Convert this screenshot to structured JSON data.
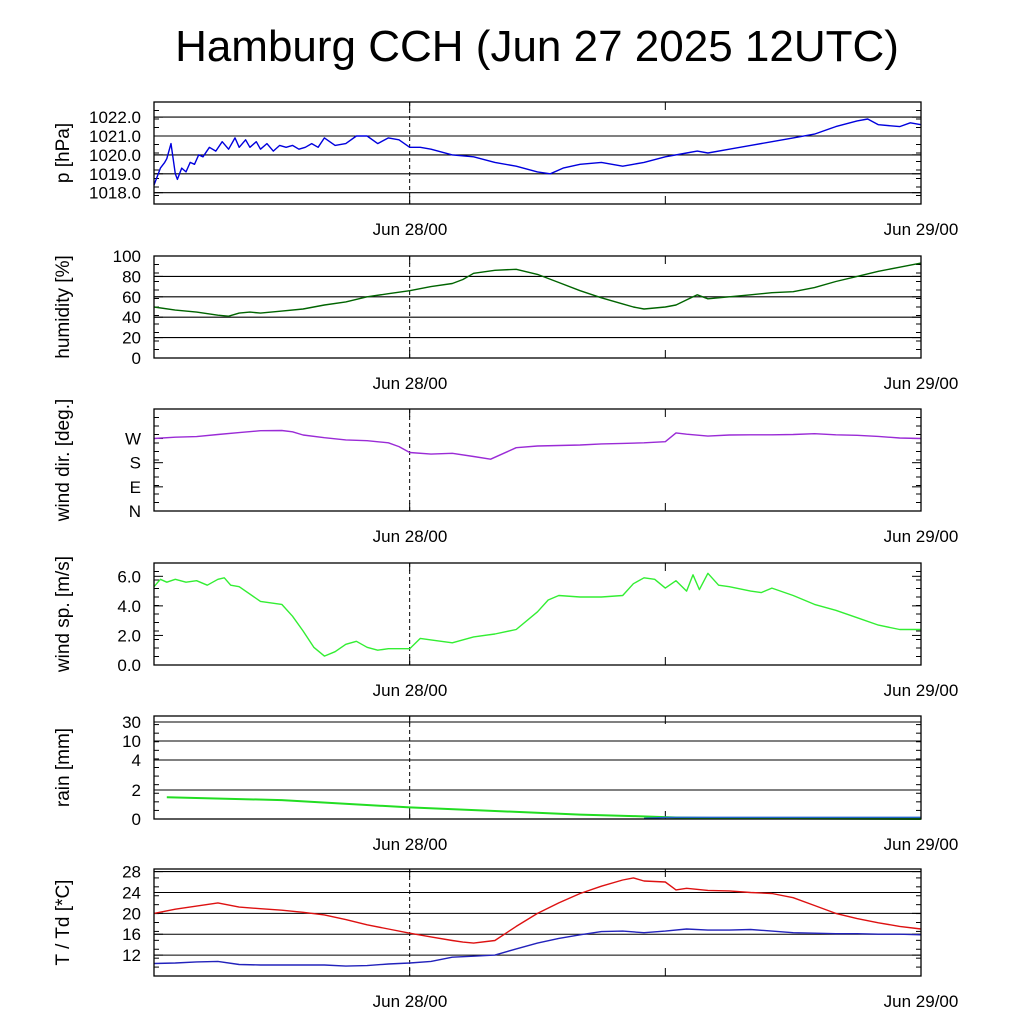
{
  "title": "Hamburg CCH (Jun 27 2025 12UTC)",
  "chart_data": [
    {
      "type": "line",
      "ylabel": "p [hPa]",
      "x_tick_labels": [
        "Jun 28/00",
        "Jun 29/00"
      ],
      "xlim_hours": [
        0,
        36
      ],
      "ylim": [
        1017.4,
        1022.8
      ],
      "yticks": [
        1018.0,
        1019.0,
        1020.0,
        1021.0,
        1022.0
      ],
      "ytick_labels": [
        "1018.0",
        "1019.0",
        "1020.0",
        "1021.0",
        "1022.0"
      ],
      "grid": true,
      "series": [
        {
          "color": "#0000dd",
          "x": [
            0,
            0.3,
            0.5,
            0.6,
            0.8,
            1.0,
            1.1,
            1.3,
            1.5,
            1.7,
            1.9,
            2.1,
            2.3,
            2.6,
            2.9,
            3.2,
            3.5,
            3.8,
            4.0,
            4.3,
            4.5,
            4.8,
            5.0,
            5.3,
            5.6,
            5.9,
            6.2,
            6.5,
            6.8,
            7.1,
            7.4,
            7.7,
            8.0,
            8.5,
            9.0,
            9.5,
            10.0,
            10.5,
            11.0,
            11.5,
            12.0,
            12.5,
            13.0,
            14.0,
            15.0,
            16.0,
            17.0,
            18.0,
            18.6,
            19.2,
            20.0,
            21.0,
            22.0,
            22.5,
            23.0,
            24.0,
            25.0,
            25.5,
            26.0,
            27.0,
            28.0,
            29.0,
            30.0,
            31.0,
            32.0,
            33.0,
            33.5,
            34.0,
            35.0,
            35.5,
            36.0
          ],
          "y": [
            1018.4,
            1019.3,
            1019.6,
            1019.8,
            1020.6,
            1019.0,
            1018.7,
            1019.3,
            1019.1,
            1019.6,
            1019.5,
            1020.0,
            1019.9,
            1020.4,
            1020.2,
            1020.7,
            1020.3,
            1020.9,
            1020.4,
            1020.8,
            1020.4,
            1020.7,
            1020.3,
            1020.6,
            1020.2,
            1020.5,
            1020.4,
            1020.5,
            1020.3,
            1020.4,
            1020.6,
            1020.4,
            1020.9,
            1020.5,
            1020.6,
            1021.0,
            1021.0,
            1020.6,
            1020.9,
            1020.8,
            1020.4,
            1020.4,
            1020.3,
            1020.0,
            1019.9,
            1019.6,
            1019.4,
            1019.1,
            1019.0,
            1019.3,
            1019.5,
            1019.6,
            1019.4,
            1019.5,
            1019.6,
            1019.9,
            1020.1,
            1020.2,
            1020.1,
            1020.3,
            1020.5,
            1020.7,
            1020.9,
            1021.1,
            1021.5,
            1021.8,
            1021.9,
            1021.6,
            1021.5,
            1021.7,
            1021.6
          ]
        }
      ]
    },
    {
      "type": "line",
      "ylabel": "humidity [%]",
      "x_tick_labels": [
        "Jun 28/00",
        "Jun 29/00"
      ],
      "xlim_hours": [
        0,
        36
      ],
      "ylim": [
        0,
        100
      ],
      "yticks": [
        0,
        20,
        40,
        60,
        80,
        100
      ],
      "ytick_labels": [
        "0",
        "20",
        "40",
        "60",
        "80",
        "100"
      ],
      "grid": true,
      "series": [
        {
          "color": "#006400",
          "x": [
            0,
            1,
            2,
            3,
            3.5,
            4,
            4.5,
            5,
            6,
            7,
            8,
            9,
            10,
            11,
            12,
            13,
            14,
            14.5,
            15,
            16,
            17,
            18,
            19,
            20,
            21,
            22,
            22.5,
            23,
            24,
            24.5,
            25,
            25.5,
            26,
            27,
            28,
            29,
            30,
            31,
            32,
            33,
            34,
            35,
            36
          ],
          "y": [
            50,
            47,
            45,
            42,
            41,
            44,
            45,
            44,
            46,
            48,
            52,
            55,
            60,
            63,
            66,
            70,
            73,
            77,
            83,
            86,
            87,
            82,
            74,
            66,
            59,
            53,
            50,
            48,
            50,
            52,
            57,
            62,
            58,
            60,
            62,
            64,
            65,
            69,
            75,
            80,
            85,
            89,
            93
          ]
        }
      ]
    },
    {
      "type": "line",
      "ylabel": "wind dir. [deg.]",
      "x_tick_labels": [
        "Jun 28/00",
        "Jun 29/00"
      ],
      "xlim_hours": [
        0,
        36
      ],
      "ylim": [
        0,
        380
      ],
      "yticks": [
        0,
        90,
        180,
        270
      ],
      "ytick_labels": [
        "N",
        "E",
        "S",
        "W"
      ],
      "grid": false,
      "series": [
        {
          "color": "#9a2bd6",
          "x": [
            0,
            1,
            2,
            3,
            4,
            5,
            6,
            6.5,
            7,
            8,
            9,
            10,
            11,
            11.5,
            12,
            13,
            14,
            15,
            15.8,
            17,
            18,
            19,
            20,
            21,
            22,
            23,
            24,
            24.5,
            25,
            26,
            27,
            28,
            29,
            30,
            31,
            32,
            33,
            34,
            35,
            36
          ],
          "y": [
            270,
            275,
            277,
            285,
            292,
            299,
            300,
            295,
            283,
            273,
            265,
            262,
            254,
            240,
            218,
            212,
            215,
            203,
            193,
            236,
            242,
            244,
            246,
            250,
            252,
            254,
            258,
            291,
            286,
            279,
            283,
            284,
            284,
            285,
            288,
            284,
            282,
            278,
            272,
            270
          ]
        }
      ]
    },
    {
      "type": "line",
      "ylabel": "wind sp. [m/s]",
      "x_tick_labels": [
        "Jun 28/00",
        "Jun 29/00"
      ],
      "xlim_hours": [
        0,
        36
      ],
      "ylim": [
        0,
        6.9
      ],
      "yticks": [
        0,
        2,
        4,
        6
      ],
      "ytick_labels": [
        "0.0",
        "2.0",
        "4.0",
        "6.0"
      ],
      "grid": false,
      "series": [
        {
          "color": "#33ee33",
          "x": [
            0,
            0.3,
            0.6,
            1,
            1.5,
            2,
            2.5,
            3,
            3.3,
            3.6,
            4,
            5,
            6,
            6.5,
            7,
            7.5,
            8,
            8.5,
            9,
            9.5,
            10,
            10.5,
            11,
            12,
            12.5,
            13,
            14,
            15,
            16,
            17,
            18,
            18.5,
            19,
            20,
            21,
            22,
            22.5,
            23,
            23.5,
            24,
            24.5,
            25,
            25.3,
            25.6,
            26,
            26.5,
            27,
            28,
            28.5,
            29,
            30,
            31,
            32,
            33,
            34,
            35,
            36
          ],
          "y": [
            5.3,
            5.8,
            5.6,
            5.8,
            5.6,
            5.7,
            5.4,
            5.8,
            5.9,
            5.4,
            5.3,
            4.3,
            4.1,
            3.3,
            2.3,
            1.2,
            0.6,
            0.9,
            1.4,
            1.6,
            1.2,
            1.0,
            1.1,
            1.1,
            1.8,
            1.7,
            1.5,
            1.9,
            2.1,
            2.4,
            3.6,
            4.4,
            4.7,
            4.6,
            4.6,
            4.7,
            5.5,
            5.9,
            5.8,
            5.2,
            5.7,
            5.0,
            6.1,
            5.1,
            6.2,
            5.4,
            5.3,
            5.0,
            4.9,
            5.2,
            4.7,
            4.1,
            3.7,
            3.2,
            2.7,
            2.4,
            2.4
          ]
        }
      ]
    },
    {
      "type": "line",
      "ylabel": "rain [mm]",
      "x_tick_labels": [
        "Jun 28/00",
        "Jun 29/00"
      ],
      "xlim_hours": [
        0,
        36
      ],
      "yticks": [
        0,
        2,
        4,
        10,
        30
      ],
      "ytick_labels": [
        "0",
        "2",
        "4",
        "10",
        "30"
      ],
      "grid": true,
      "series": [
        {
          "color": "#22dd22",
          "x": [
            0.6,
            6,
            12,
            16,
            20,
            22.5,
            24.5,
            27,
            36
          ],
          "y": [
            1.5,
            1.3,
            0.8,
            0.55,
            0.3,
            0.2,
            0.1,
            0.05,
            0.0
          ]
        },
        {
          "color": "#2266cc",
          "x": [
            23,
            24,
            25,
            28,
            32,
            36
          ],
          "y": [
            0.05,
            0.1,
            0.12,
            0.12,
            0.12,
            0.12
          ]
        }
      ]
    },
    {
      "type": "line",
      "ylabel": "T / Td [*C]",
      "x_tick_labels": [
        "Jun 28/00",
        "Jun 29/00"
      ],
      "xlim_hours": [
        0,
        36
      ],
      "ylim": [
        8,
        28.5
      ],
      "yticks": [
        12,
        16,
        20,
        24,
        28
      ],
      "ytick_labels": [
        "12",
        "16",
        "20",
        "24",
        "28"
      ],
      "grid": true,
      "series": [
        {
          "name": "T",
          "color": "#dd1111",
          "x": [
            0,
            1,
            2,
            3,
            4,
            5,
            6,
            7,
            8,
            9,
            10,
            11,
            12,
            13,
            14,
            14.5,
            15,
            16,
            17,
            18,
            19,
            20,
            21,
            22,
            22.5,
            23,
            24,
            24.5,
            25,
            26,
            27,
            28,
            29,
            30,
            31,
            32,
            33,
            34,
            35,
            36
          ],
          "y": [
            20.0,
            20.8,
            21.4,
            22.0,
            21.2,
            20.9,
            20.6,
            20.2,
            19.7,
            18.8,
            17.8,
            17.0,
            16.2,
            15.5,
            14.8,
            14.5,
            14.3,
            14.8,
            17.5,
            20.0,
            22.0,
            23.8,
            25.2,
            26.4,
            26.8,
            26.2,
            26.0,
            24.5,
            24.8,
            24.4,
            24.3,
            24.0,
            23.8,
            23.0,
            21.5,
            20.0,
            19.0,
            18.2,
            17.5,
            17.0
          ]
        },
        {
          "name": "Td",
          "color": "#2222bb",
          "x": [
            0,
            1,
            2,
            3,
            4,
            5,
            6,
            8,
            9,
            10,
            11,
            12,
            13,
            14,
            15,
            16,
            17,
            18,
            19,
            20,
            21,
            22,
            23,
            24,
            25,
            26,
            27,
            28,
            29,
            30,
            31,
            32,
            33,
            34,
            35,
            36
          ],
          "y": [
            10.4,
            10.5,
            10.7,
            10.8,
            10.2,
            10.1,
            10.1,
            10.1,
            9.9,
            10.0,
            10.3,
            10.5,
            10.8,
            11.6,
            11.8,
            12.0,
            13.2,
            14.3,
            15.2,
            15.9,
            16.5,
            16.6,
            16.3,
            16.6,
            17.0,
            16.8,
            16.8,
            16.9,
            16.6,
            16.3,
            16.2,
            16.1,
            16.1,
            16.0,
            16.0,
            15.9
          ]
        }
      ]
    }
  ]
}
